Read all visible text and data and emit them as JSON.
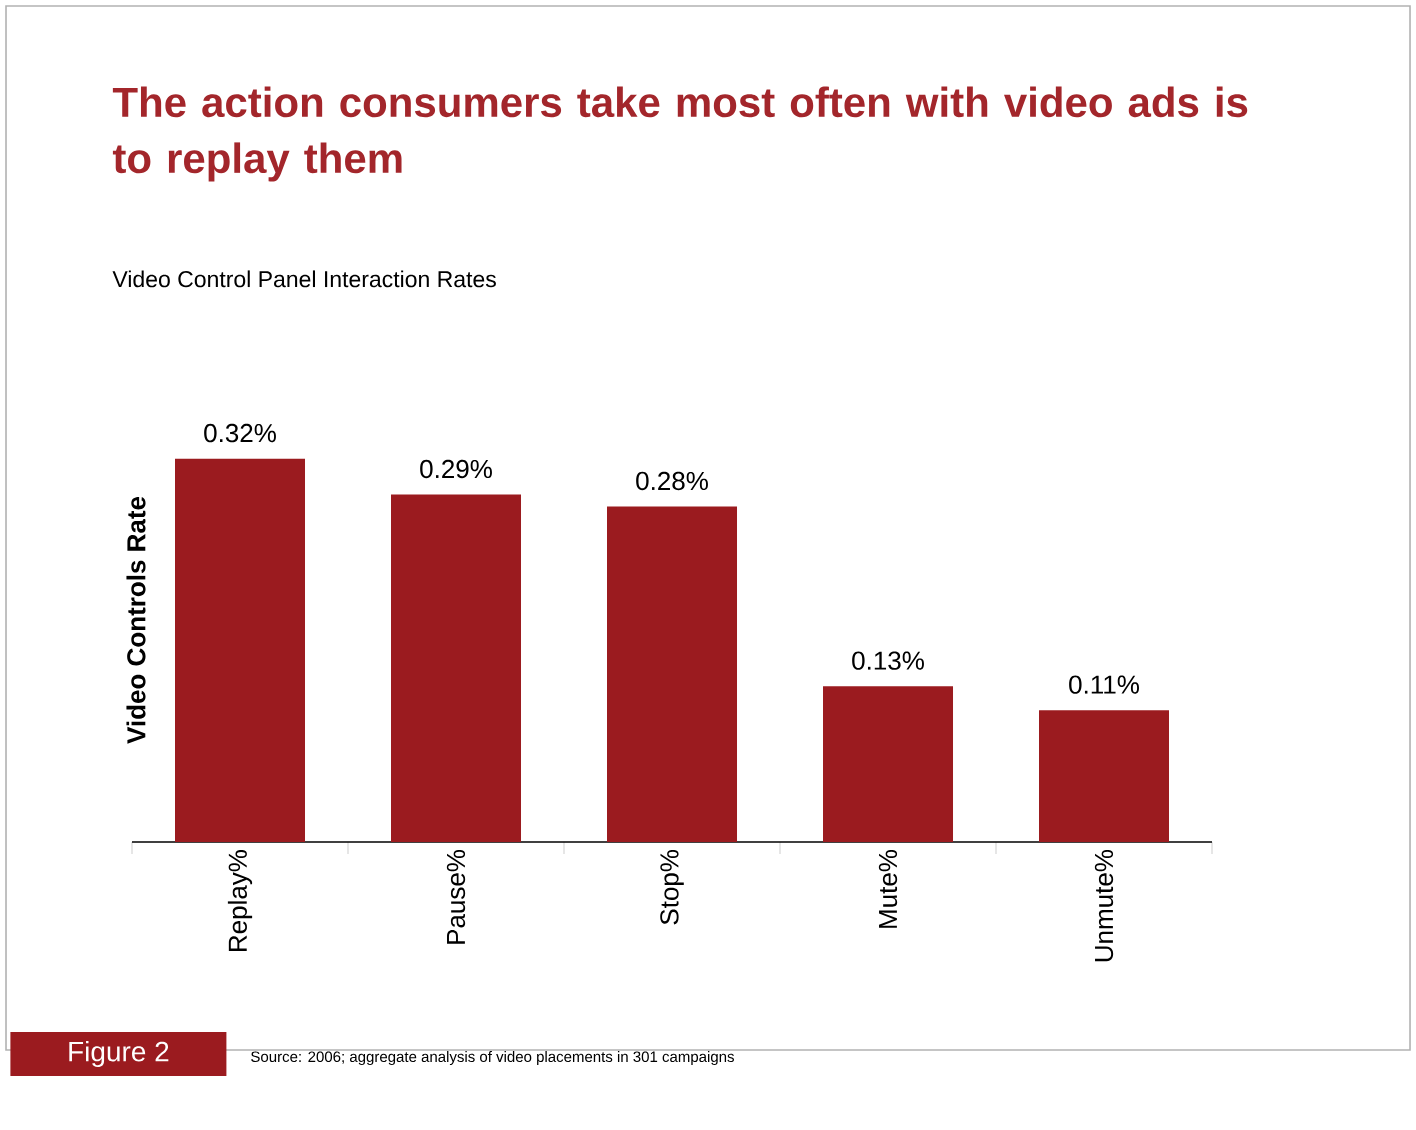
{
  "chart_data": {
    "type": "bar",
    "title": "The action consumers take most often with video ads is to replay them",
    "subtitle": "Video Control Panel Interaction Rates",
    "ylabel": "Video Controls Rate",
    "categories": [
      "Replay%",
      "Pause%",
      "Stop%",
      "Mute%",
      "Unmute%"
    ],
    "values": [
      0.32,
      0.29,
      0.28,
      0.13,
      0.11
    ],
    "value_labels": [
      "0.32%",
      "0.29%",
      "0.28%",
      "0.13%",
      "0.11%"
    ],
    "color": "#9b1b1f",
    "annotations": [
      "Figure 2",
      "Source: 2006; aggregate analysis of video placements in 301 campaigns"
    ]
  }
}
